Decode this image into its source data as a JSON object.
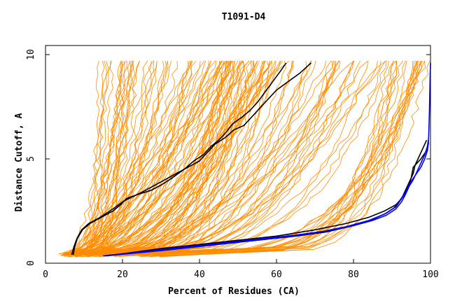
{
  "chart_data": {
    "type": "line",
    "title": "T1091-D4",
    "xlabel": "Percent of Residues (CA)",
    "ylabel": "Distance Cutoff, A",
    "xlim": [
      0,
      100
    ],
    "ylim": [
      0,
      10
    ],
    "x_ticks": [
      "0",
      "20",
      "40",
      "60",
      "80",
      "100"
    ],
    "y_ticks": [
      "0",
      "5",
      "10"
    ],
    "grid": false,
    "colors": {
      "background_series": "#ff8c00",
      "highlight_black": "#000000",
      "highlight_blue": "#0000ff"
    },
    "background_series_count": 160,
    "highlight_series": [
      {
        "color": "#000000",
        "points": [
          [
            7.2,
            0.4
          ],
          [
            7.6,
            0.8
          ],
          [
            8.3,
            1.2
          ],
          [
            9.6,
            1.6
          ],
          [
            11.5,
            1.9
          ],
          [
            14.5,
            2.2
          ],
          [
            17.5,
            2.5
          ],
          [
            19.5,
            2.8
          ],
          [
            21,
            3.1
          ],
          [
            24,
            3.3
          ],
          [
            27.5,
            3.5
          ],
          [
            30.5,
            3.8
          ],
          [
            33,
            4.1
          ],
          [
            36,
            4.5
          ],
          [
            38.5,
            4.9
          ],
          [
            41,
            5.2
          ],
          [
            43,
            5.6
          ],
          [
            45,
            5.9
          ],
          [
            47,
            6.3
          ],
          [
            48.7,
            6.7
          ],
          [
            51,
            7.0
          ],
          [
            53,
            7.3
          ],
          [
            55,
            7.7
          ],
          [
            57,
            8.2
          ],
          [
            59,
            8.7
          ],
          [
            61,
            9.2
          ],
          [
            62.5,
            9.6
          ]
        ]
      },
      {
        "color": "#000000",
        "points": [
          [
            6.8,
            0.4
          ],
          [
            7.4,
            0.8
          ],
          [
            8.2,
            1.2
          ],
          [
            9.4,
            1.6
          ],
          [
            11.2,
            1.9
          ],
          [
            14.2,
            2.2
          ],
          [
            17.5,
            2.6
          ],
          [
            20.5,
            3.0
          ],
          [
            25,
            3.4
          ],
          [
            29,
            3.8
          ],
          [
            33,
            4.2
          ],
          [
            37,
            4.6
          ],
          [
            40,
            4.9
          ],
          [
            42,
            5.3
          ],
          [
            44,
            5.7
          ],
          [
            46.5,
            6.0
          ],
          [
            49,
            6.4
          ],
          [
            51.5,
            6.6
          ],
          [
            53.5,
            7.0
          ],
          [
            56,
            7.5
          ],
          [
            58,
            7.9
          ],
          [
            60,
            8.3
          ],
          [
            63,
            8.7
          ],
          [
            66,
            9.1
          ],
          [
            69,
            9.6
          ]
        ]
      },
      {
        "color": "#000000",
        "points": [
          [
            16,
            0.35
          ],
          [
            30,
            0.7
          ],
          [
            45,
            1.0
          ],
          [
            60,
            1.3
          ],
          [
            70,
            1.6
          ],
          [
            78,
            1.9
          ],
          [
            84,
            2.2
          ],
          [
            88,
            2.5
          ],
          [
            91,
            2.8
          ],
          [
            92.5,
            3.1
          ],
          [
            93.5,
            3.5
          ],
          [
            94.5,
            3.9
          ],
          [
            95.5,
            4.3
          ],
          [
            96,
            4.7
          ],
          [
            97,
            5.1
          ],
          [
            98,
            5.5
          ],
          [
            99,
            5.9
          ]
        ]
      },
      {
        "color": "#000000",
        "points": [
          [
            15,
            0.35
          ],
          [
            28,
            0.6
          ],
          [
            40,
            0.85
          ],
          [
            55,
            1.1
          ],
          [
            65,
            1.3
          ],
          [
            73,
            1.5
          ],
          [
            80,
            1.8
          ],
          [
            85,
            2.1
          ],
          [
            88.5,
            2.4
          ],
          [
            91,
            2.7
          ],
          [
            92.5,
            3.1
          ],
          [
            94,
            3.5
          ],
          [
            95,
            4.1
          ],
          [
            95.5,
            4.6
          ],
          [
            97.5,
            5.0
          ],
          [
            99,
            5.4
          ],
          [
            99.5,
            5.9
          ]
        ]
      },
      {
        "color": "#0000ff",
        "points": [
          [
            15,
            0.35
          ],
          [
            25,
            0.55
          ],
          [
            35,
            0.75
          ],
          [
            45,
            0.95
          ],
          [
            55,
            1.15
          ],
          [
            65,
            1.35
          ],
          [
            73,
            1.55
          ],
          [
            80,
            1.8
          ],
          [
            85,
            2.05
          ],
          [
            88.5,
            2.3
          ],
          [
            91,
            2.6
          ],
          [
            92.5,
            2.95
          ],
          [
            93.5,
            3.3
          ],
          [
            94.5,
            3.7
          ],
          [
            95.5,
            4.0
          ],
          [
            96.5,
            4.4
          ],
          [
            97.5,
            4.8
          ],
          [
            98.5,
            5.2
          ],
          [
            99.2,
            5.6
          ],
          [
            99.5,
            6.0
          ],
          [
            99.6,
            6.5
          ],
          [
            99.7,
            7.2
          ],
          [
            99.8,
            8.0
          ],
          [
            99.9,
            9.0
          ],
          [
            100,
            9.6
          ]
        ]
      },
      {
        "color": "#0000ff",
        "points": [
          [
            15.5,
            0.35
          ],
          [
            30,
            0.6
          ],
          [
            45,
            0.9
          ],
          [
            60,
            1.2
          ],
          [
            70,
            1.45
          ],
          [
            78,
            1.75
          ],
          [
            84,
            2.05
          ],
          [
            88,
            2.35
          ],
          [
            90.5,
            2.65
          ],
          [
            92,
            3.0
          ],
          [
            93.5,
            3.4
          ],
          [
            94.5,
            3.8
          ],
          [
            96,
            4.2
          ],
          [
            97.5,
            4.6
          ],
          [
            98.5,
            5.0
          ],
          [
            99.2,
            5.4
          ],
          [
            99.5,
            5.8
          ]
        ]
      }
    ]
  }
}
